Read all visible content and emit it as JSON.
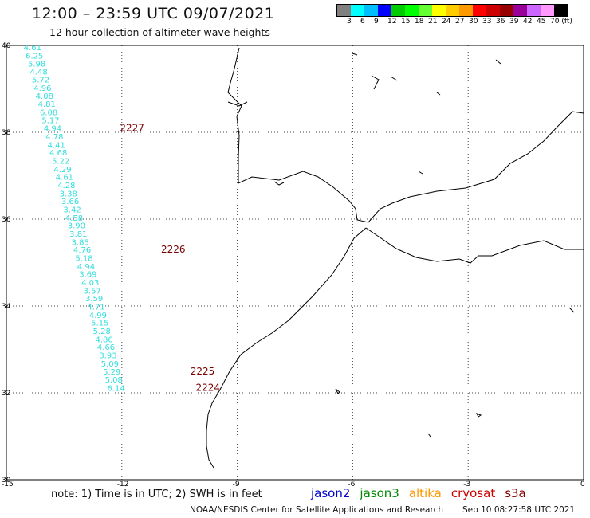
{
  "header": {
    "title": "12:00 – 23:59 UTC 09/07/2021",
    "subtitle": "12 hour collection of altimeter wave heights"
  },
  "legend": {
    "colors": [
      "#808080",
      "#00ffff",
      "#00bfff",
      "#0000ff",
      "#00cc00",
      "#00ff00",
      "#66ff33",
      "#ffff00",
      "#ffcc00",
      "#ff9900",
      "#ff0000",
      "#cc0000",
      "#990000",
      "#990099",
      "#cc66ff",
      "#ff99ff",
      "#000000"
    ],
    "labels": [
      "3",
      "6",
      "9",
      "12",
      "15",
      "18",
      "21",
      "24",
      "27",
      "30",
      "33",
      "36",
      "39",
      "42",
      "45",
      "70 (ft)"
    ]
  },
  "axes": {
    "lat_labels": [
      "40",
      "38",
      "36",
      "34",
      "32",
      "30"
    ],
    "lon_labels": [
      "-15",
      "-12",
      "-9",
      "-6",
      "-3",
      "0"
    ]
  },
  "track": {
    "color": "#33dddd",
    "points": [
      {
        "lon": -14.55,
        "lat": 39.96,
        "v": "4.61"
      },
      {
        "lon": -14.5,
        "lat": 39.77,
        "v": "6.25"
      },
      {
        "lon": -14.44,
        "lat": 39.59,
        "v": "5.98"
      },
      {
        "lon": -14.39,
        "lat": 39.4,
        "v": "4.48"
      },
      {
        "lon": -14.34,
        "lat": 39.22,
        "v": "5.72"
      },
      {
        "lon": -14.29,
        "lat": 39.03,
        "v": "4.96"
      },
      {
        "lon": -14.24,
        "lat": 38.84,
        "v": "4.08"
      },
      {
        "lon": -14.18,
        "lat": 38.66,
        "v": "4.81"
      },
      {
        "lon": -14.13,
        "lat": 38.47,
        "v": "6.08"
      },
      {
        "lon": -14.08,
        "lat": 38.28,
        "v": "5.17"
      },
      {
        "lon": -14.03,
        "lat": 38.1,
        "v": "4.94"
      },
      {
        "lon": -13.98,
        "lat": 37.91,
        "v": "4.78"
      },
      {
        "lon": -13.93,
        "lat": 37.72,
        "v": "4.41"
      },
      {
        "lon": -13.88,
        "lat": 37.54,
        "v": "4.68"
      },
      {
        "lon": -13.82,
        "lat": 37.35,
        "v": "5.22"
      },
      {
        "lon": -13.77,
        "lat": 37.16,
        "v": "4.29"
      },
      {
        "lon": -13.72,
        "lat": 36.98,
        "v": "4.61"
      },
      {
        "lon": -13.67,
        "lat": 36.79,
        "v": "4.28"
      },
      {
        "lon": -13.62,
        "lat": 36.6,
        "v": "3.38"
      },
      {
        "lon": -13.57,
        "lat": 36.42,
        "v": "3.66"
      },
      {
        "lon": -13.52,
        "lat": 36.23,
        "v": "3.42"
      },
      {
        "lon": -13.47,
        "lat": 36.04,
        "v": "4.58"
      },
      {
        "lon": -13.41,
        "lat": 35.86,
        "v": "3.90"
      },
      {
        "lon": -13.36,
        "lat": 35.67,
        "v": "3.81"
      },
      {
        "lon": -13.31,
        "lat": 35.48,
        "v": "3.85"
      },
      {
        "lon": -13.26,
        "lat": 35.3,
        "v": "4.76"
      },
      {
        "lon": -13.21,
        "lat": 35.11,
        "v": "5.18"
      },
      {
        "lon": -13.16,
        "lat": 34.92,
        "v": "4.94"
      },
      {
        "lon": -13.11,
        "lat": 34.74,
        "v": "3.69"
      },
      {
        "lon": -13.05,
        "lat": 34.55,
        "v": "4.03"
      },
      {
        "lon": -13.0,
        "lat": 34.36,
        "v": "3.57"
      },
      {
        "lon": -12.95,
        "lat": 34.18,
        "v": "3.59"
      },
      {
        "lon": -12.9,
        "lat": 33.99,
        "v": "4.71"
      },
      {
        "lon": -12.85,
        "lat": 33.8,
        "v": "4.99"
      },
      {
        "lon": -12.8,
        "lat": 33.62,
        "v": "5.15"
      },
      {
        "lon": -12.75,
        "lat": 33.43,
        "v": "5.28"
      },
      {
        "lon": -12.69,
        "lat": 33.24,
        "v": "4.86"
      },
      {
        "lon": -12.64,
        "lat": 33.06,
        "v": "4.66"
      },
      {
        "lon": -12.59,
        "lat": 32.87,
        "v": "3.93"
      },
      {
        "lon": -12.54,
        "lat": 32.68,
        "v": "5.09"
      },
      {
        "lon": -12.49,
        "lat": 32.5,
        "v": "5.29"
      },
      {
        "lon": -12.44,
        "lat": 32.31,
        "v": "5.08"
      },
      {
        "lon": -12.38,
        "lat": 32.12,
        "v": "6.14"
      }
    ],
    "orbits": [
      {
        "label": "2227",
        "lon": -12.05,
        "lat": 38.1
      },
      {
        "label": "2226",
        "lon": -10.98,
        "lat": 35.3
      },
      {
        "label": "2225",
        "lon": -10.22,
        "lat": 32.5
      },
      {
        "label": "2224",
        "lon": -10.08,
        "lat": 32.12
      }
    ],
    "orbit_color": "#7a0000"
  },
  "satellites": [
    {
      "name": "jason2",
      "color": "#0000cc"
    },
    {
      "name": "jason3",
      "color": "#008800"
    },
    {
      "name": "altika",
      "color": "#ff9900"
    },
    {
      "name": "cryosat",
      "color": "#cc0000"
    },
    {
      "name": "s3a",
      "color": "#880000"
    }
  ],
  "note": "note: 1) Time is in UTC; 2) SWH is in feet",
  "footer": {
    "credit": "NOAA/NESDIS Center for Satellite Applications and Research",
    "timestamp": "Sep 10 08:27:58 UTC 2021"
  }
}
